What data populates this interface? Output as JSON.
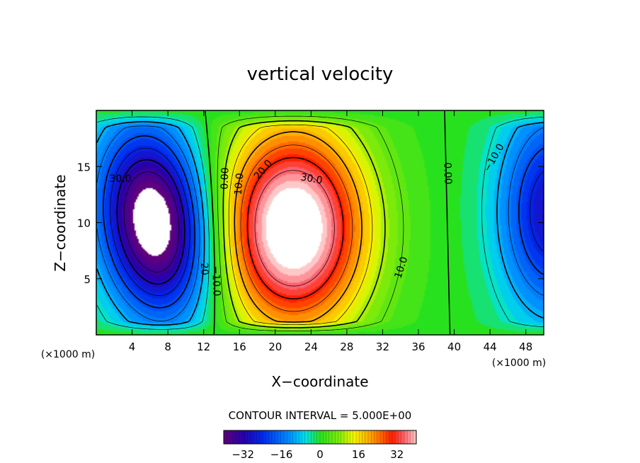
{
  "chart_data": {
    "type": "heatmap",
    "subtype": "filled-contour",
    "title": "vertical velocity",
    "xlabel": "X−coordinate",
    "ylabel": "Z−coordinate",
    "x_unit_left": "(×1000 m)",
    "x_unit_right": "(×1000 m)",
    "xlim": [
      0,
      50
    ],
    "ylim": [
      0,
      20
    ],
    "x_ticks": [
      4,
      8,
      12,
      16,
      20,
      24,
      28,
      32,
      36,
      40,
      44,
      48
    ],
    "y_ticks": [
      5,
      10,
      15
    ],
    "contour_interval_text": "CONTOUR INTERVAL = 5.000E+00",
    "contour_interval": 5.0,
    "colorbar": {
      "range": [
        -40,
        40
      ],
      "ticks": [
        -32,
        -16,
        0,
        16,
        32
      ],
      "tick_labels": [
        "−32",
        "−16",
        "0",
        "16",
        "32"
      ],
      "colormap": "rainbow (purple-blue-cyan-green-yellow-red-pink)"
    },
    "contour_labels": [
      "30.0",
      "0.00",
      "−20",
      "−10.0",
      "0.00",
      "10.0",
      "20.0",
      "30.0",
      "10.0",
      "0.00",
      "−10.0"
    ],
    "features": [
      {
        "kind": "downdraft",
        "center_x": 7,
        "center_z": 9.5,
        "min_value": -40
      },
      {
        "kind": "updraft",
        "center_x": 22,
        "center_z": 9,
        "max_value": 40
      },
      {
        "kind": "downdraft",
        "center_x": 50,
        "center_z": 11,
        "min_value": -25
      }
    ],
    "missing_regions": [
      "white holes at cores where |w| exceeds colour range"
    ]
  },
  "colors": {
    "background": "#ffffff",
    "zero_contour": "#000000"
  }
}
